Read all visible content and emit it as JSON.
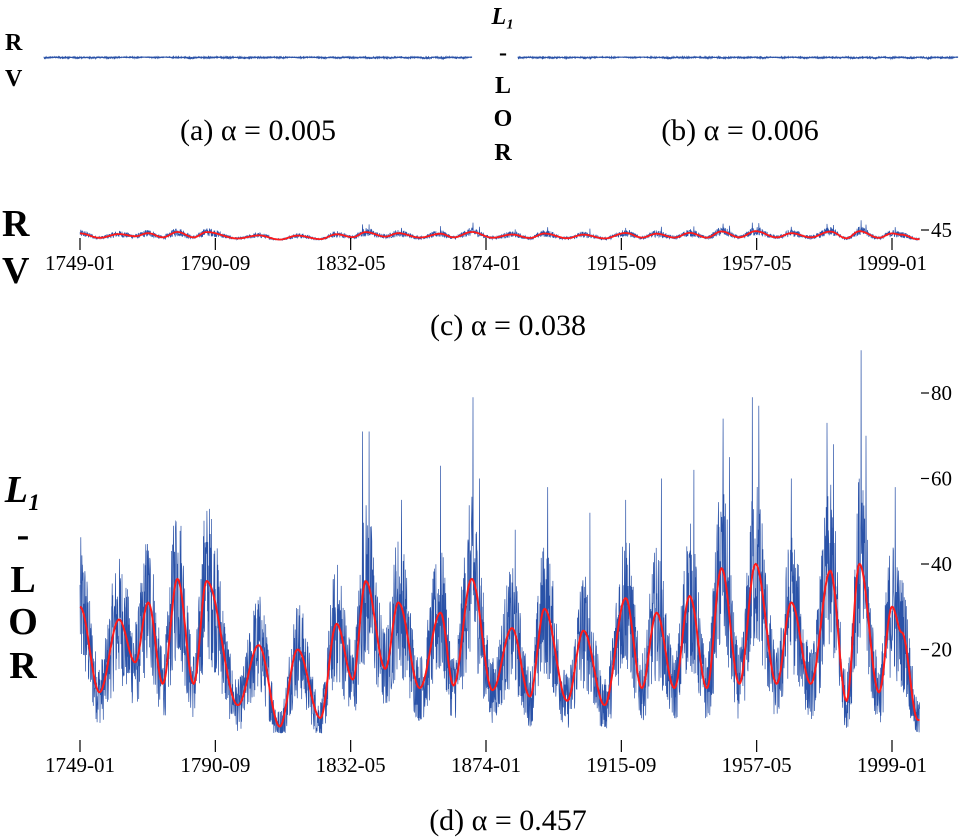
{
  "chart_data": [
    {
      "panel": "a",
      "type": "line",
      "caption": "(a) α = 0.005",
      "ylabel_lines": [
        "R",
        "V"
      ],
      "colors": {
        "raw": "#2a52a8"
      }
    },
    {
      "panel": "b",
      "type": "line",
      "caption": "(b) α = 0.006",
      "ylabel_lines": [
        "L₁",
        "-",
        "L",
        "O",
        "R"
      ],
      "colors": {
        "raw": "#2a52a8"
      }
    },
    {
      "panel": "c",
      "type": "line",
      "caption": "(c) α = 0.038",
      "ylabel_lines": [
        "R",
        "V"
      ],
      "x_tick_labels": [
        "1749-01",
        "1790-09",
        "1832-05",
        "1874-01",
        "1915-09",
        "1957-05",
        "1999-01"
      ],
      "y_tick_labels": [
        "45"
      ],
      "colors": {
        "raw": "#2a52a8",
        "smoothed": "#ff1a1a"
      }
    },
    {
      "panel": "d",
      "type": "line",
      "caption": "(d) α = 0.457",
      "ylabel_lines": [
        "L₁",
        "-",
        "L",
        "O",
        "R"
      ],
      "x_tick_labels": [
        "1749-01",
        "1790-09",
        "1832-05",
        "1874-01",
        "1915-09",
        "1957-05",
        "1999-01"
      ],
      "x_ticks": [
        1749.0,
        1790.67,
        1832.33,
        1874.0,
        1915.67,
        1957.33,
        1999.0
      ],
      "xlim": [
        1749,
        2008
      ],
      "y_tick_labels": [
        "20",
        "40",
        "60",
        "80"
      ],
      "y_ticks": [
        20,
        40,
        60,
        80
      ],
      "ylim": [
        0,
        90
      ],
      "grid": false,
      "colors": {
        "raw": "#2a52a8",
        "smoothed": "#ff1a1a"
      },
      "smoothed": [
        [
          1749,
          30
        ],
        [
          1755,
          10
        ],
        [
          1761,
          27
        ],
        [
          1766,
          17
        ],
        [
          1770,
          31
        ],
        [
          1774.5,
          12
        ],
        [
          1779,
          36.5
        ],
        [
          1784,
          12
        ],
        [
          1788,
          36
        ],
        [
          1797.6,
          7
        ],
        [
          1804,
          21
        ],
        [
          1810.5,
          2
        ],
        [
          1816,
          20
        ],
        [
          1823,
          4
        ],
        [
          1828,
          26
        ],
        [
          1833,
          13
        ],
        [
          1837,
          36
        ],
        [
          1843,
          15.5
        ],
        [
          1847,
          31
        ],
        [
          1853.6,
          11
        ],
        [
          1860,
          28.6
        ],
        [
          1864,
          11.6
        ],
        [
          1869.6,
          36.5
        ],
        [
          1876,
          10.5
        ],
        [
          1882,
          25
        ],
        [
          1887.5,
          9
        ],
        [
          1892,
          29.5
        ],
        [
          1899,
          8
        ],
        [
          1904,
          24.4
        ],
        [
          1910.5,
          7
        ],
        [
          1917,
          32
        ],
        [
          1922,
          11
        ],
        [
          1926.5,
          28.6
        ],
        [
          1932,
          11
        ],
        [
          1936.7,
          32.5
        ],
        [
          1942,
          11
        ],
        [
          1946.5,
          39
        ],
        [
          1952,
          12
        ],
        [
          1957,
          40
        ],
        [
          1963.5,
          12
        ],
        [
          1968,
          31
        ],
        [
          1974,
          12
        ],
        [
          1980,
          38.4
        ],
        [
          1985,
          8
        ],
        [
          1989,
          40
        ],
        [
          1995,
          10
        ],
        [
          1999,
          30
        ],
        [
          2002,
          24
        ],
        [
          2007,
          3.5
        ]
      ],
      "raw_spikes": [
        [
          1778.5,
          50
        ],
        [
          1787.5,
          45
        ],
        [
          1836,
          71
        ],
        [
          1838,
          71
        ],
        [
          1848,
          55
        ],
        [
          1860,
          63
        ],
        [
          1870,
          79
        ],
        [
          1872,
          60
        ],
        [
          1883,
          48
        ],
        [
          1893,
          58
        ],
        [
          1906,
          52
        ],
        [
          1917,
          55
        ],
        [
          1928,
          60
        ],
        [
          1938,
          62
        ],
        [
          1947,
          74
        ],
        [
          1949,
          65
        ],
        [
          1956,
          79
        ],
        [
          1958,
          77
        ],
        [
          1968,
          60
        ],
        [
          1979,
          73
        ],
        [
          1981,
          68
        ],
        [
          1989.5,
          90
        ],
        [
          1991,
          70
        ],
        [
          2000,
          58
        ]
      ]
    }
  ]
}
